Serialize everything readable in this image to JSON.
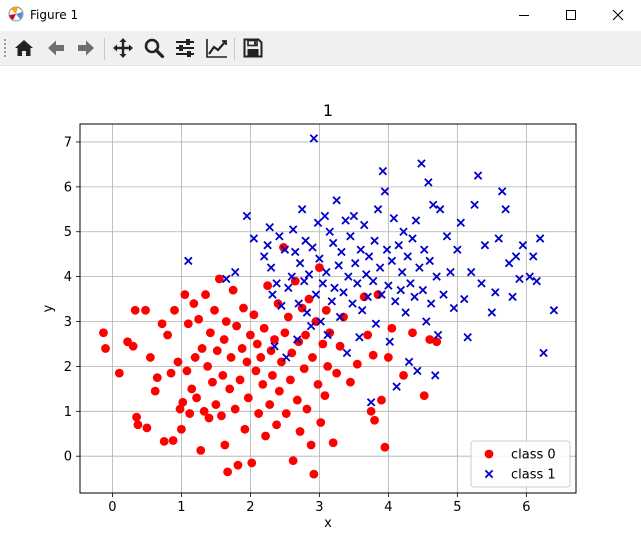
{
  "window": {
    "title": "Figure 1"
  },
  "toolbar": {
    "buttons": [
      {
        "name": "home",
        "icon": "home-icon"
      },
      {
        "name": "back",
        "icon": "arrow-left-icon"
      },
      {
        "name": "forward",
        "icon": "arrow-right-icon"
      },
      {
        "name": "pan",
        "icon": "move-icon"
      },
      {
        "name": "zoom",
        "icon": "magnifier-icon"
      },
      {
        "name": "subplots",
        "icon": "sliders-icon"
      },
      {
        "name": "edit-axis",
        "icon": "line-chart-icon"
      },
      {
        "name": "save",
        "icon": "floppy-disk-icon"
      }
    ]
  },
  "chart_data": {
    "type": "scatter",
    "title": "1",
    "xlabel": "x",
    "ylabel": "y",
    "xlim": [
      -0.47,
      6.72
    ],
    "ylim": [
      -0.82,
      7.4
    ],
    "xticks": [
      0,
      1,
      2,
      3,
      4,
      5,
      6
    ],
    "yticks": [
      0,
      1,
      2,
      3,
      4,
      5,
      6,
      7
    ],
    "grid": true,
    "legend_position": "lower right",
    "series": [
      {
        "name": "class 0",
        "marker": "circle",
        "color": "#ff0000",
        "points": [
          [
            -0.13,
            2.75
          ],
          [
            -0.1,
            2.4
          ],
          [
            0.1,
            1.85
          ],
          [
            0.22,
            2.55
          ],
          [
            0.3,
            2.45
          ],
          [
            0.33,
            3.25
          ],
          [
            0.35,
            0.87
          ],
          [
            0.37,
            0.7
          ],
          [
            0.48,
            3.25
          ],
          [
            0.5,
            0.63
          ],
          [
            0.55,
            2.2
          ],
          [
            0.62,
            1.45
          ],
          [
            0.65,
            1.75
          ],
          [
            0.72,
            2.95
          ],
          [
            0.75,
            0.33
          ],
          [
            0.8,
            2.7
          ],
          [
            0.85,
            1.85
          ],
          [
            0.88,
            0.35
          ],
          [
            0.9,
            3.25
          ],
          [
            0.95,
            2.1
          ],
          [
            0.98,
            1.05
          ],
          [
            1.0,
            0.6
          ],
          [
            1.02,
            1.2
          ],
          [
            1.05,
            3.6
          ],
          [
            1.08,
            1.9
          ],
          [
            1.1,
            2.95
          ],
          [
            1.12,
            0.95
          ],
          [
            1.15,
            1.5
          ],
          [
            1.18,
            3.4
          ],
          [
            1.2,
            2.2
          ],
          [
            1.22,
            1.3
          ],
          [
            1.25,
            3.05
          ],
          [
            1.28,
            0.13
          ],
          [
            1.3,
            2.4
          ],
          [
            1.33,
            1.0
          ],
          [
            1.35,
            3.6
          ],
          [
            1.38,
            2.0
          ],
          [
            1.4,
            0.85
          ],
          [
            1.42,
            2.75
          ],
          [
            1.45,
            1.65
          ],
          [
            1.48,
            3.25
          ],
          [
            1.5,
            1.15
          ],
          [
            1.52,
            2.35
          ],
          [
            1.55,
            3.95
          ],
          [
            1.58,
            0.9
          ],
          [
            1.6,
            1.8
          ],
          [
            1.62,
            2.6
          ],
          [
            1.63,
            0.25
          ],
          [
            1.65,
            3.0
          ],
          [
            1.67,
            -0.35
          ],
          [
            1.7,
            1.5
          ],
          [
            1.72,
            2.2
          ],
          [
            1.75,
            3.7
          ],
          [
            1.78,
            1.05
          ],
          [
            1.8,
            2.9
          ],
          [
            1.82,
            -0.2
          ],
          [
            1.85,
            1.7
          ],
          [
            1.88,
            2.4
          ],
          [
            1.9,
            3.3
          ],
          [
            1.92,
            0.6
          ],
          [
            1.95,
            2.1
          ],
          [
            1.97,
            1.3
          ],
          [
            2.0,
            2.7
          ],
          [
            2.02,
            -0.15
          ],
          [
            2.05,
            3.15
          ],
          [
            2.08,
            1.9
          ],
          [
            2.1,
            2.5
          ],
          [
            2.12,
            0.95
          ],
          [
            2.15,
            2.2
          ],
          [
            2.18,
            1.6
          ],
          [
            2.2,
            2.85
          ],
          [
            2.22,
            0.45
          ],
          [
            2.25,
            3.8
          ],
          [
            2.28,
            1.15
          ],
          [
            2.3,
            2.35
          ],
          [
            2.32,
            1.8
          ],
          [
            2.35,
            2.6
          ],
          [
            2.38,
            0.7
          ],
          [
            2.4,
            3.4
          ],
          [
            2.42,
            1.45
          ],
          [
            2.45,
            2.1
          ],
          [
            2.48,
            4.65
          ],
          [
            2.5,
            2.75
          ],
          [
            2.52,
            0.95
          ],
          [
            2.55,
            3.1
          ],
          [
            2.58,
            1.7
          ],
          [
            2.6,
            2.3
          ],
          [
            2.62,
            -0.1
          ],
          [
            2.65,
            3.9
          ],
          [
            2.68,
            1.25
          ],
          [
            2.7,
            2.55
          ],
          [
            2.72,
            0.55
          ],
          [
            2.75,
            3.3
          ],
          [
            2.78,
            1.95
          ],
          [
            2.8,
            2.7
          ],
          [
            2.82,
            1.05
          ],
          [
            2.85,
            3.5
          ],
          [
            2.88,
            0.25
          ],
          [
            2.9,
            2.2
          ],
          [
            2.92,
            -0.4
          ],
          [
            2.95,
            3.0
          ],
          [
            2.98,
            1.6
          ],
          [
            3.0,
            4.2
          ],
          [
            3.02,
            0.75
          ],
          [
            3.05,
            2.5
          ],
          [
            3.08,
            1.35
          ],
          [
            3.1,
            3.25
          ],
          [
            3.12,
            2.0
          ],
          [
            3.15,
            2.75
          ],
          [
            3.2,
            0.3
          ],
          [
            3.25,
            1.85
          ],
          [
            3.3,
            2.45
          ],
          [
            3.35,
            3.1
          ],
          [
            3.45,
            1.65
          ],
          [
            3.55,
            2.05
          ],
          [
            3.65,
            3.55
          ],
          [
            3.7,
            2.7
          ],
          [
            3.75,
            1.0
          ],
          [
            3.78,
            2.25
          ],
          [
            3.8,
            0.8
          ],
          [
            3.85,
            3.6
          ],
          [
            3.9,
            1.25
          ],
          [
            3.95,
            0.2
          ],
          [
            4.0,
            2.2
          ],
          [
            4.05,
            2.85
          ],
          [
            4.22,
            1.8
          ],
          [
            4.35,
            2.75
          ],
          [
            4.52,
            1.35
          ],
          [
            4.6,
            2.6
          ],
          [
            4.7,
            2.55
          ]
        ]
      },
      {
        "name": "class 1",
        "marker": "x",
        "color": "#0000cc",
        "points": [
          [
            1.1,
            4.35
          ],
          [
            1.65,
            3.95
          ],
          [
            1.78,
            4.1
          ],
          [
            1.95,
            5.35
          ],
          [
            2.05,
            4.85
          ],
          [
            2.2,
            4.45
          ],
          [
            2.25,
            4.7
          ],
          [
            2.28,
            5.1
          ],
          [
            2.3,
            4.2
          ],
          [
            2.32,
            3.6
          ],
          [
            2.35,
            2.45
          ],
          [
            2.38,
            3.85
          ],
          [
            2.42,
            4.9
          ],
          [
            2.45,
            3.35
          ],
          [
            2.5,
            4.6
          ],
          [
            2.52,
            2.2
          ],
          [
            2.55,
            3.75
          ],
          [
            2.6,
            4.0
          ],
          [
            2.62,
            5.05
          ],
          [
            2.65,
            4.55
          ],
          [
            2.68,
            2.6
          ],
          [
            2.7,
            3.4
          ],
          [
            2.72,
            4.3
          ],
          [
            2.75,
            5.5
          ],
          [
            2.78,
            3.9
          ],
          [
            2.8,
            4.8
          ],
          [
            2.82,
            3.2
          ],
          [
            2.85,
            4.05
          ],
          [
            2.88,
            2.9
          ],
          [
            2.9,
            4.65
          ],
          [
            2.92,
            7.08
          ],
          [
            2.95,
            3.6
          ],
          [
            2.98,
            5.2
          ],
          [
            3.0,
            4.4
          ],
          [
            3.02,
            3.0
          ],
          [
            3.05,
            3.85
          ],
          [
            3.08,
            5.35
          ],
          [
            3.1,
            4.1
          ],
          [
            3.12,
            2.7
          ],
          [
            3.15,
            5.0
          ],
          [
            3.18,
            3.45
          ],
          [
            3.2,
            4.75
          ],
          [
            3.22,
            3.75
          ],
          [
            3.25,
            5.7
          ],
          [
            3.28,
            4.25
          ],
          [
            3.3,
            3.1
          ],
          [
            3.32,
            4.55
          ],
          [
            3.35,
            3.65
          ],
          [
            3.38,
            5.25
          ],
          [
            3.4,
            2.3
          ],
          [
            3.42,
            4.0
          ],
          [
            3.45,
            4.9
          ],
          [
            3.48,
            3.4
          ],
          [
            3.5,
            5.35
          ],
          [
            3.52,
            4.3
          ],
          [
            3.55,
            3.85
          ],
          [
            3.58,
            2.65
          ],
          [
            3.6,
            4.6
          ],
          [
            3.62,
            3.25
          ],
          [
            3.65,
            5.15
          ],
          [
            3.68,
            4.05
          ],
          [
            3.7,
            3.55
          ],
          [
            3.72,
            4.45
          ],
          [
            3.75,
            1.2
          ],
          [
            3.78,
            3.9
          ],
          [
            3.8,
            4.8
          ],
          [
            3.82,
            2.95
          ],
          [
            3.85,
            5.5
          ],
          [
            3.88,
            4.2
          ],
          [
            3.9,
            3.6
          ],
          [
            3.92,
            6.35
          ],
          [
            3.95,
            5.9
          ],
          [
            3.98,
            4.6
          ],
          [
            4.0,
            3.8
          ],
          [
            4.02,
            2.55
          ],
          [
            4.05,
            4.35
          ],
          [
            4.08,
            5.3
          ],
          [
            4.1,
            3.45
          ],
          [
            4.12,
            1.55
          ],
          [
            4.15,
            4.7
          ],
          [
            4.18,
            3.7
          ],
          [
            4.2,
            4.1
          ],
          [
            4.22,
            5.0
          ],
          [
            4.25,
            3.2
          ],
          [
            4.28,
            4.45
          ],
          [
            4.3,
            2.1
          ],
          [
            4.32,
            3.85
          ],
          [
            4.35,
            4.85
          ],
          [
            4.38,
            3.55
          ],
          [
            4.4,
            5.25
          ],
          [
            4.42,
            1.9
          ],
          [
            4.45,
            4.2
          ],
          [
            4.48,
            6.52
          ],
          [
            4.5,
            3.7
          ],
          [
            4.52,
            4.6
          ],
          [
            4.55,
            3.0
          ],
          [
            4.58,
            6.1
          ],
          [
            4.6,
            4.35
          ],
          [
            4.62,
            3.4
          ],
          [
            4.65,
            5.6
          ],
          [
            4.68,
            1.8
          ],
          [
            4.7,
            4.0
          ],
          [
            4.72,
            2.7
          ],
          [
            4.75,
            5.5
          ],
          [
            4.8,
            3.6
          ],
          [
            4.85,
            4.9
          ],
          [
            4.9,
            4.1
          ],
          [
            4.95,
            3.3
          ],
          [
            5.0,
            4.6
          ],
          [
            5.05,
            5.2
          ],
          [
            5.1,
            3.5
          ],
          [
            5.15,
            2.65
          ],
          [
            5.2,
            4.1
          ],
          [
            5.25,
            5.6
          ],
          [
            5.3,
            6.25
          ],
          [
            5.35,
            3.85
          ],
          [
            5.4,
            4.7
          ],
          [
            5.5,
            3.2
          ],
          [
            5.55,
            3.65
          ],
          [
            5.6,
            4.85
          ],
          [
            5.65,
            5.9
          ],
          [
            5.7,
            5.5
          ],
          [
            5.75,
            4.3
          ],
          [
            5.8,
            3.55
          ],
          [
            5.85,
            4.45
          ],
          [
            5.9,
            3.95
          ],
          [
            5.95,
            4.7
          ],
          [
            6.05,
            4.0
          ],
          [
            6.1,
            4.45
          ],
          [
            6.15,
            3.9
          ],
          [
            6.2,
            4.85
          ],
          [
            6.25,
            2.3
          ],
          [
            6.4,
            3.25
          ]
        ]
      }
    ]
  }
}
